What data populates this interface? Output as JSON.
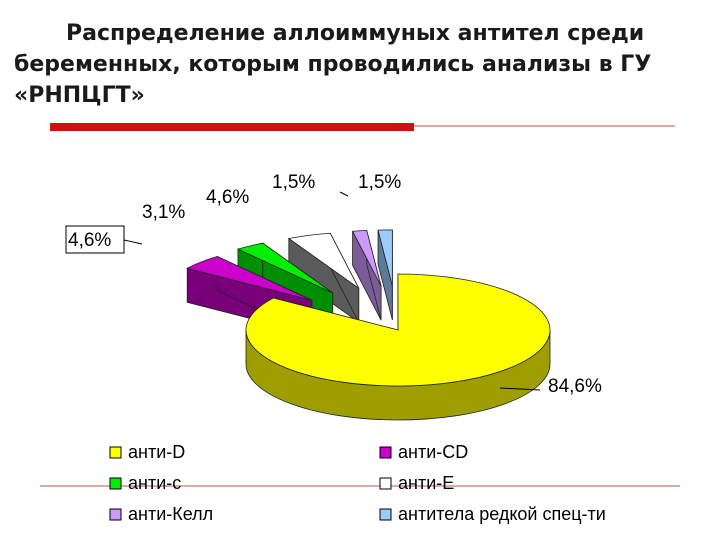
{
  "title_lines": [
    "Распределение аллоиммуных антител среди",
    "беременных, которым проводились анализы в ГУ",
    "«РНПЦГТ»"
  ],
  "colors": {
    "accent_bar": "#cc1111",
    "rule": "#c0504d"
  },
  "chart_data": {
    "type": "pie",
    "style": "3d-exploded",
    "slices": [
      {
        "name": "анти-D",
        "value": 84.6,
        "label": "84,6%",
        "color": "#ffff00"
      },
      {
        "name": "анти-CD",
        "value": 4.6,
        "label": "4,6%",
        "color": "#cc00cc"
      },
      {
        "name": "анти-c",
        "value": 3.1,
        "label": "3,1%",
        "color": "#00ee00"
      },
      {
        "name": "анти-E",
        "value": 4.6,
        "label": "4,6%",
        "color": "#ffffff"
      },
      {
        "name": "анти-Келл",
        "value": 1.5,
        "label": "1,5%",
        "color": "#cc99ff"
      },
      {
        "name": "антитела редкой спец-ти",
        "value": 1.5,
        "label": "1,5%",
        "color": "#99ccff"
      }
    ],
    "legend_position": "bottom"
  }
}
